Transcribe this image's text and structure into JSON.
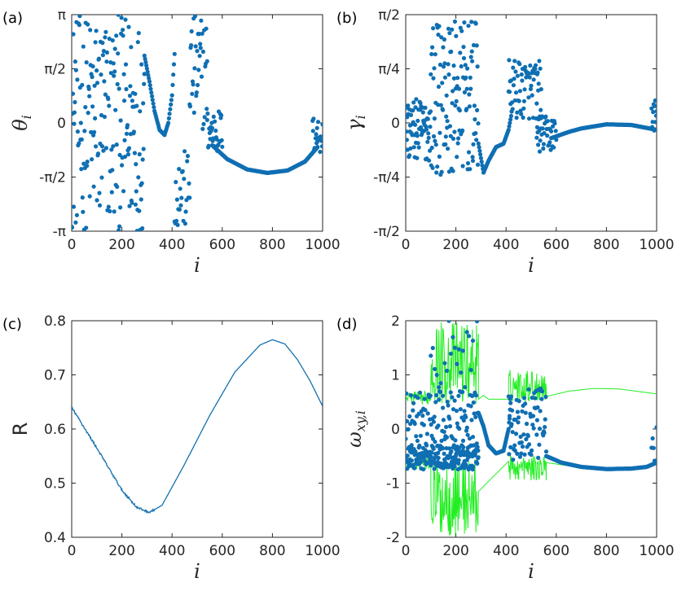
{
  "colors": {
    "dots": "#0f6fb3",
    "line": "#1470b0",
    "green": "#22ee22",
    "axis": "#262626"
  },
  "chart_data": [
    {
      "id": "a",
      "panel_label": "(a)",
      "type": "scatter",
      "xlabel": "i",
      "ylabel_main": "θ",
      "ylabel_sub": "i",
      "xlim": [
        0,
        1000
      ],
      "ylim": [
        -3.14159,
        3.14159
      ],
      "xticks": [
        0,
        200,
        400,
        600,
        800,
        1000
      ],
      "yticks": [
        {
          "v": -3.14159,
          "label": "-π"
        },
        {
          "v": -1.5708,
          "label": "-π/2"
        },
        {
          "v": 0,
          "label": "0"
        },
        {
          "v": 1.5708,
          "label": "π/2"
        },
        {
          "v": 3.14159,
          "label": "π"
        }
      ],
      "series": [
        {
          "name": "theta_i",
          "segments": [
            {
              "kind": "noise",
              "x0": 0,
              "x1": 290,
              "step": 1.6,
              "lo": -3.14,
              "hi": 3.14
            },
            {
              "kind": "curve",
              "x0": 290,
              "x1": 410,
              "step": 2.5,
              "pts": [
                [
                  290,
                  1.95
                ],
                [
                  310,
                  1.2
                ],
                [
                  330,
                  0.35
                ],
                [
                  350,
                  -0.2
                ],
                [
                  370,
                  -0.35
                ],
                [
                  385,
                  0.0
                ],
                [
                  400,
                  0.8
                ],
                [
                  410,
                  2.0
                ]
              ]
            },
            {
              "kind": "noise",
              "x0": 410,
              "x1": 470,
              "step": 2.5,
              "lo": -3.14,
              "hi": -0.8
            },
            {
              "kind": "noise",
              "x0": 470,
              "x1": 540,
              "step": 2,
              "lo": -0.2,
              "hi": 3.14
            },
            {
              "kind": "noise",
              "x0": 540,
              "x1": 600,
              "step": 2,
              "lo": -0.9,
              "hi": 0.4
            },
            {
              "kind": "curve",
              "x0": 560,
              "x1": 980,
              "step": 2.5,
              "pts": [
                [
                  560,
                  -0.65
                ],
                [
                  620,
                  -1.05
                ],
                [
                  700,
                  -1.35
                ],
                [
                  780,
                  -1.45
                ],
                [
                  860,
                  -1.38
                ],
                [
                  930,
                  -1.12
                ],
                [
                  980,
                  -0.7
                ]
              ]
            },
            {
              "kind": "noise",
              "x0": 960,
              "x1": 1000,
              "step": 2,
              "lo": -0.9,
              "hi": 0.2
            }
          ]
        }
      ]
    },
    {
      "id": "b",
      "panel_label": "(b)",
      "type": "scatter",
      "xlabel": "i",
      "ylabel_main": "γ",
      "ylabel_sub": "i",
      "xlim": [
        0,
        1000
      ],
      "ylim": [
        -1.5708,
        1.5708
      ],
      "xticks": [
        0,
        200,
        400,
        600,
        800,
        1000
      ],
      "yticks": [
        {
          "v": -1.5708,
          "label": "-π/2"
        },
        {
          "v": -0.7854,
          "label": "-π/4"
        },
        {
          "v": 0,
          "label": "0"
        },
        {
          "v": 0.7854,
          "label": "π/4"
        },
        {
          "v": 1.5708,
          "label": "π/2"
        }
      ],
      "series": [
        {
          "name": "gamma_i",
          "segments": [
            {
              "kind": "noise",
              "x0": 0,
              "x1": 100,
              "step": 1.5,
              "lo": -0.55,
              "hi": 0.35
            },
            {
              "kind": "noise",
              "x0": 100,
              "x1": 290,
              "step": 1.5,
              "lo": -0.75,
              "hi": 1.48
            },
            {
              "kind": "curve",
              "x0": 290,
              "x1": 420,
              "step": 2.5,
              "pts": [
                [
                  290,
                  -0.3
                ],
                [
                  310,
                  -0.72
                ],
                [
                  330,
                  -0.55
                ],
                [
                  360,
                  -0.35
                ],
                [
                  390,
                  -0.3
                ],
                [
                  410,
                  -0.1
                ],
                [
                  420,
                  0.1
                ]
              ]
            },
            {
              "kind": "noise",
              "x0": 410,
              "x1": 540,
              "step": 2,
              "lo": 0.05,
              "hi": 0.92
            },
            {
              "kind": "noise",
              "x0": 520,
              "x1": 600,
              "step": 2,
              "lo": -0.42,
              "hi": 0.1
            },
            {
              "kind": "curve",
              "x0": 580,
              "x1": 1000,
              "step": 2.5,
              "pts": [
                [
                  580,
                  -0.22
                ],
                [
                  650,
                  -0.13
                ],
                [
                  700,
                  -0.08
                ],
                [
                  800,
                  -0.02
                ],
                [
                  900,
                  -0.03
                ],
                [
                  1000,
                  -0.1
                ]
              ]
            },
            {
              "kind": "noise",
              "x0": 980,
              "x1": 1000,
              "step": 2,
              "lo": -0.12,
              "hi": 0.35
            }
          ]
        }
      ]
    },
    {
      "id": "c",
      "panel_label": "(c)",
      "type": "line",
      "xlabel": "i",
      "ylabel": "R",
      "xlim": [
        0,
        1000
      ],
      "ylim": [
        0.4,
        0.8
      ],
      "xticks": [
        0,
        200,
        400,
        600,
        800,
        1000
      ],
      "yticks": [
        {
          "v": 0.4,
          "label": "0.4"
        },
        {
          "v": 0.5,
          "label": "0.5"
        },
        {
          "v": 0.6,
          "label": "0.6"
        },
        {
          "v": 0.7,
          "label": "0.7"
        },
        {
          "v": 0.8,
          "label": "0.8"
        }
      ],
      "series": [
        {
          "name": "R",
          "points": [
            [
              0,
              0.64
            ],
            [
              100,
              0.565
            ],
            [
              200,
              0.487
            ],
            [
              260,
              0.455
            ],
            [
              310,
              0.446
            ],
            [
              360,
              0.459
            ],
            [
              450,
              0.535
            ],
            [
              550,
              0.625
            ],
            [
              650,
              0.705
            ],
            [
              750,
              0.755
            ],
            [
              800,
              0.765
            ],
            [
              850,
              0.757
            ],
            [
              900,
              0.728
            ],
            [
              950,
              0.689
            ],
            [
              1000,
              0.642
            ]
          ]
        }
      ]
    },
    {
      "id": "d",
      "panel_label": "(d)",
      "type": "scatter",
      "xlabel": "i",
      "ylabel_main": "ω",
      "ylabel_sub": "xy,i",
      "xlim": [
        0,
        1000
      ],
      "ylim": [
        -2,
        2
      ],
      "xticks": [
        0,
        200,
        400,
        600,
        800,
        1000
      ],
      "yticks": [
        {
          "v": -2,
          "label": "-2"
        },
        {
          "v": -1,
          "label": "-1"
        },
        {
          "v": 0,
          "label": "0"
        },
        {
          "v": 1,
          "label": "1"
        },
        {
          "v": 2,
          "label": "2"
        }
      ],
      "series": [
        {
          "name": "green_upper",
          "kind": "line",
          "segments": [
            {
              "kind": "noise",
              "x0": 0,
              "x1": 100,
              "step": 2,
              "lo": 0.45,
              "hi": 0.7
            },
            {
              "kind": "noise",
              "x0": 100,
              "x1": 290,
              "step": 2,
              "lo": 0.45,
              "hi": 2.0
            },
            {
              "kind": "curve",
              "x0": 290,
              "x1": 410,
              "step": 4,
              "pts": [
                [
                  290,
                  0.55
                ],
                [
                  310,
                  0.62
                ],
                [
                  330,
                  0.55
                ],
                [
                  410,
                  0.55
                ]
              ]
            },
            {
              "kind": "noise",
              "x0": 410,
              "x1": 560,
              "step": 2,
              "lo": 0.5,
              "hi": 1.1
            },
            {
              "kind": "curve",
              "x0": 560,
              "x1": 1000,
              "step": 4,
              "pts": [
                [
                  560,
                  0.6
                ],
                [
                  650,
                  0.7
                ],
                [
                  750,
                  0.75
                ],
                [
                  850,
                  0.74
                ],
                [
                  950,
                  0.68
                ],
                [
                  1000,
                  0.65
                ]
              ]
            }
          ]
        },
        {
          "name": "green_lower",
          "kind": "line",
          "segments": [
            {
              "kind": "noise",
              "x0": 0,
              "x1": 100,
              "step": 2,
              "lo": -0.75,
              "hi": -0.5
            },
            {
              "kind": "noise",
              "x0": 100,
              "x1": 290,
              "step": 2,
              "lo": -2.0,
              "hi": -0.5
            },
            {
              "kind": "noise",
              "x0": 410,
              "x1": 560,
              "step": 2,
              "lo": -0.95,
              "hi": -0.5
            },
            {
              "kind": "curve",
              "x0": 560,
              "x1": 1000,
              "step": 4,
              "pts": [
                [
                  560,
                  -0.62
                ],
                [
                  650,
                  -0.68
                ],
                [
                  750,
                  -0.72
                ],
                [
                  850,
                  -0.73
                ],
                [
                  950,
                  -0.7
                ],
                [
                  1000,
                  -0.65
                ]
              ]
            }
          ]
        },
        {
          "name": "omega_xy",
          "kind": "dots",
          "segments": [
            {
              "kind": "noise",
              "x0": 0,
              "x1": 290,
              "step": 1.5,
              "lo": -0.75,
              "hi": -0.3
            },
            {
              "kind": "noise",
              "x0": 0,
              "x1": 290,
              "step": 2.6,
              "lo": -0.4,
              "hi": 0.7
            },
            {
              "kind": "noise",
              "x0": 100,
              "x1": 290,
              "step": 8,
              "lo": 0.6,
              "hi": 2.0
            },
            {
              "kind": "curve",
              "x0": 290,
              "x1": 420,
              "step": 2,
              "pts": [
                [
                  290,
                  0.3
                ],
                [
                  310,
                  0.05
                ],
                [
                  330,
                  -0.3
                ],
                [
                  360,
                  -0.45
                ],
                [
                  390,
                  -0.4
                ],
                [
                  410,
                  0.0
                ],
                [
                  420,
                  0.6
                ]
              ]
            },
            {
              "kind": "noise",
              "x0": 410,
              "x1": 560,
              "step": 2,
              "lo": -0.65,
              "hi": 0.75
            },
            {
              "kind": "curve",
              "x0": 560,
              "x1": 1000,
              "step": 2.5,
              "pts": [
                [
                  560,
                  -0.5
                ],
                [
                  620,
                  -0.62
                ],
                [
                  700,
                  -0.7
                ],
                [
                  800,
                  -0.74
                ],
                [
                  900,
                  -0.73
                ],
                [
                  960,
                  -0.7
                ],
                [
                  1000,
                  -0.62
                ]
              ]
            },
            {
              "kind": "noise",
              "x0": 980,
              "x1": 1000,
              "step": 4,
              "lo": -0.6,
              "hi": 0.05
            }
          ]
        }
      ]
    }
  ]
}
